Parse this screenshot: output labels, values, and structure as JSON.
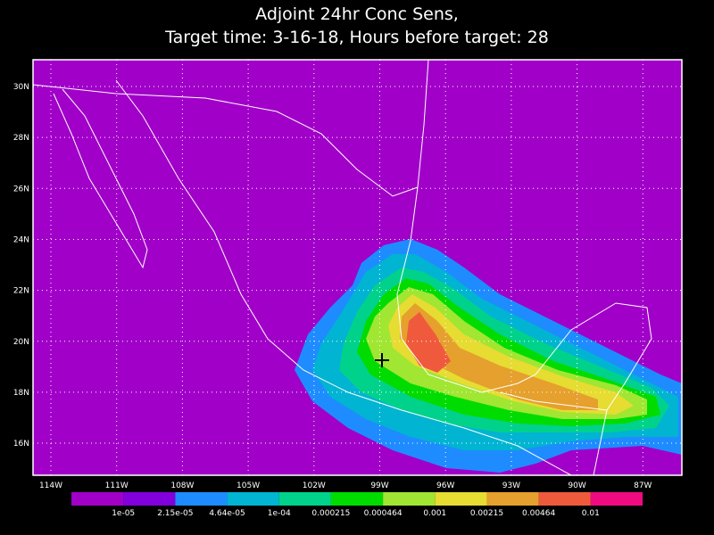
{
  "title": [
    "Adjoint 24hr Conc Sens,",
    "Target time: 3-16-18, Hours before target: 28"
  ],
  "map": {
    "lat_ticks": [
      "30N",
      "28N",
      "26N",
      "24N",
      "22N",
      "20N",
      "18N",
      "16N"
    ],
    "lon_ticks": [
      "114W",
      "111W",
      "108W",
      "105W",
      "102W",
      "99W",
      "96W",
      "93W",
      "90W",
      "87W"
    ]
  },
  "colorbar": {
    "colors": [
      "#a000c8",
      "#8200dc",
      "#1e8cff",
      "#00b4d2",
      "#00d28c",
      "#00dc00",
      "#a0e632",
      "#e6dc32",
      "#e6a02d",
      "#f05a3c",
      "#f00a82"
    ],
    "labels": [
      "1e-05",
      "2.15e-05",
      "4.64e-05",
      "1e-04",
      "0.000215",
      "0.000464",
      "0.001",
      "0.00215",
      "0.00464",
      "0.01"
    ]
  }
}
